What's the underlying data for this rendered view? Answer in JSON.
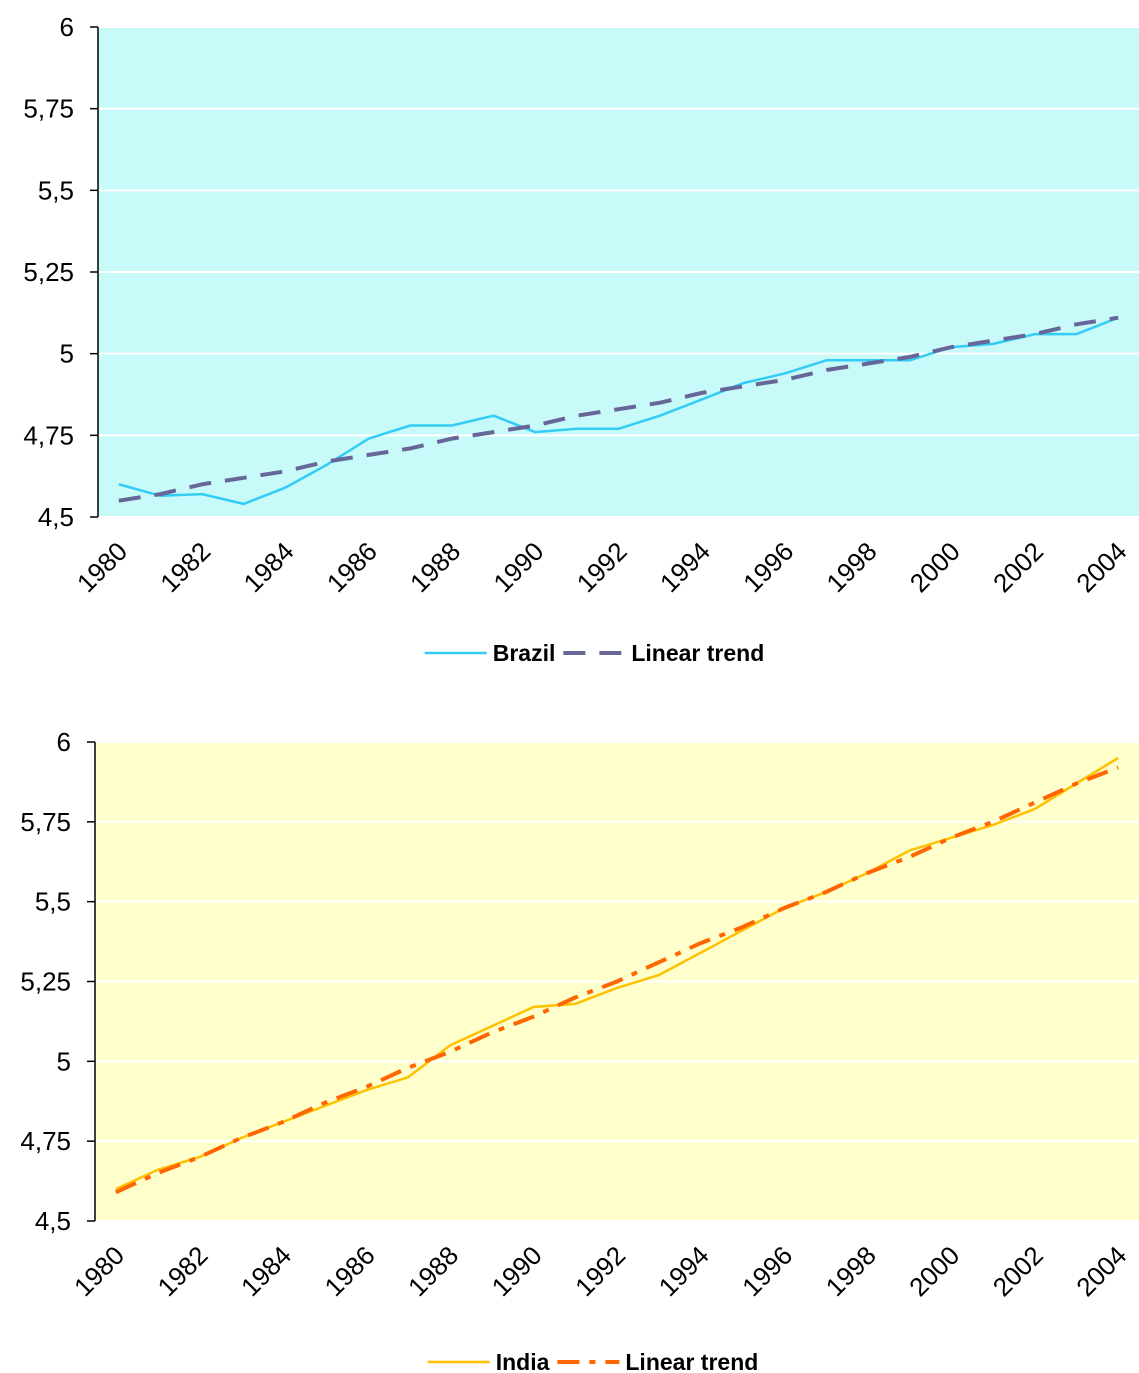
{
  "chart_data": [
    {
      "type": "line",
      "x": [
        1980,
        1981,
        1982,
        1983,
        1984,
        1985,
        1986,
        1987,
        1988,
        1989,
        1990,
        1991,
        1992,
        1993,
        1994,
        1995,
        1996,
        1997,
        1998,
        1999,
        2000,
        2001,
        2002,
        2003,
        2004
      ],
      "xlim": [
        1979.5,
        2004.5
      ],
      "xticks": [
        1980,
        1982,
        1984,
        1986,
        1988,
        1990,
        1992,
        1994,
        1996,
        1998,
        2000,
        2002,
        2004
      ],
      "ylim": [
        4.5,
        6
      ],
      "yticks": [
        {
          "value": 4.5,
          "label": "4,5"
        },
        {
          "value": 4.75,
          "label": "4,75"
        },
        5,
        {
          "value": 5.25,
          "label": "5,25"
        },
        {
          "value": 5.5,
          "label": "5,5"
        },
        {
          "value": 5.75,
          "label": "5,75"
        },
        6
      ],
      "grid": true,
      "background": "#c8fafa",
      "series": [
        {
          "name": "Brazil",
          "color": "#33ccf5",
          "dash": "solid",
          "values": [
            4.6,
            4.565,
            4.57,
            4.54,
            4.59,
            4.66,
            4.74,
            4.78,
            4.78,
            4.81,
            4.76,
            4.77,
            4.77,
            4.81,
            4.86,
            4.91,
            4.94,
            4.98,
            4.98,
            4.98,
            5.02,
            5.03,
            5.06,
            5.06,
            5.11
          ]
        },
        {
          "name": "Linear trend",
          "color": "#666699",
          "dash": "dash",
          "values": [
            4.55,
            4.57,
            4.6,
            4.62,
            4.64,
            4.67,
            4.69,
            4.71,
            4.74,
            4.76,
            4.78,
            4.81,
            4.83,
            4.85,
            4.88,
            4.9,
            4.92,
            4.95,
            4.97,
            4.99,
            5.02,
            5.04,
            5.06,
            5.09,
            5.11
          ]
        }
      ]
    },
    {
      "type": "line",
      "x": [
        1980,
        1981,
        1982,
        1983,
        1984,
        1985,
        1986,
        1987,
        1988,
        1989,
        1990,
        1991,
        1992,
        1993,
        1994,
        1995,
        1996,
        1997,
        1998,
        1999,
        2000,
        2001,
        2002,
        2003,
        2004
      ],
      "xlim": [
        1979.5,
        2004.5
      ],
      "xticks": [
        1980,
        1982,
        1984,
        1986,
        1988,
        1990,
        1992,
        1994,
        1996,
        1998,
        2000,
        2002,
        2004
      ],
      "ylim": [
        4.5,
        6
      ],
      "yticks": [
        {
          "value": 4.5,
          "label": "4,5"
        },
        {
          "value": 4.75,
          "label": "4,75"
        },
        5,
        {
          "value": 5.25,
          "label": "5,25"
        },
        {
          "value": 5.5,
          "label": "5,5"
        },
        {
          "value": 5.75,
          "label": "5,75"
        },
        6
      ],
      "grid": true,
      "background": "#ffffcc",
      "series": [
        {
          "name": "India",
          "color": "#ffc000",
          "dash": "solid",
          "values": [
            4.6,
            4.66,
            4.7,
            4.76,
            4.81,
            4.86,
            4.91,
            4.95,
            5.05,
            5.11,
            5.17,
            5.18,
            5.23,
            5.27,
            5.34,
            5.41,
            5.48,
            5.53,
            5.59,
            5.66,
            5.7,
            5.74,
            5.79,
            5.87,
            5.95
          ]
        },
        {
          "name": "Linear trend",
          "color": "#ff6600",
          "dash": "dashdot",
          "values": [
            4.59,
            4.65,
            4.7,
            4.76,
            4.81,
            4.87,
            4.92,
            4.98,
            5.03,
            5.09,
            5.14,
            5.2,
            5.25,
            5.31,
            5.37,
            5.42,
            5.48,
            5.53,
            5.59,
            5.64,
            5.7,
            5.75,
            5.81,
            5.87,
            5.92
          ]
        }
      ]
    }
  ]
}
